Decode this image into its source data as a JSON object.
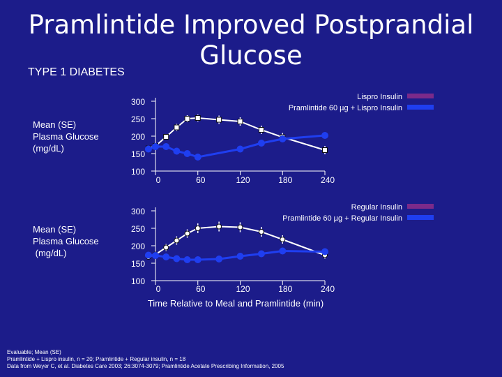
{
  "slide": {
    "title_line1": "Pramlintide Improved Postprandial",
    "title_line2": "Glucose",
    "subtitle": "TYPE 1 DIABETES",
    "xlabel": "Time Relative to Meal and Pramlintide (min)",
    "footer": [
      "Evaluable; Mean (SE)",
      "Pramlintide + Lispro insulin, n = 20;  Pramlintide + Regular insulin, n = 18",
      "Data from Weyer C, et al. Diabetes Care 2003; 26:3074-3079;  Pramlintide Acetate Prescribing Information, 2005"
    ]
  },
  "colors": {
    "background": "#1c1c8a",
    "control": "#ffffff",
    "pramlintide": "#1f3ef0",
    "legend_control_swatch": "#7b2a8a"
  },
  "chart_data": [
    {
      "type": "line",
      "ylabel": "Mean (SE)\nPlasma Glucose\n(mg/dL)",
      "ylim": [
        100,
        300
      ],
      "yticks": [
        100,
        150,
        200,
        250,
        300
      ],
      "xlim": [
        0,
        240
      ],
      "xticks": [
        0,
        60,
        120,
        180,
        240
      ],
      "series": [
        {
          "name": "Lispro Insulin",
          "style": "control",
          "x": [
            -10,
            0,
            15,
            30,
            45,
            60,
            90,
            120,
            150,
            180,
            240
          ],
          "y": [
            165,
            172,
            198,
            225,
            250,
            252,
            247,
            242,
            218,
            197,
            160
          ],
          "err": [
            0,
            8,
            8,
            10,
            10,
            10,
            12,
            12,
            12,
            12,
            12
          ]
        },
        {
          "name": "Pramlintide 60 µg + Lispro Insulin",
          "style": "pramlintide",
          "x": [
            -10,
            0,
            15,
            30,
            45,
            60,
            120,
            150,
            180,
            240
          ],
          "y": [
            163,
            170,
            170,
            157,
            150,
            140,
            163,
            180,
            192,
            202
          ],
          "err": [
            0,
            0,
            0,
            0,
            0,
            0,
            0,
            0,
            0,
            0
          ]
        }
      ]
    },
    {
      "type": "line",
      "ylabel": "Mean (SE)\nPlasma Glucose\n (mg/dL)",
      "ylim": [
        100,
        300
      ],
      "yticks": [
        100,
        150,
        200,
        250,
        300
      ],
      "xlim": [
        0,
        240
      ],
      "xticks": [
        0,
        60,
        120,
        180,
        240
      ],
      "series": [
        {
          "name": "Regular Insulin",
          "style": "control",
          "x": [
            -10,
            0,
            15,
            30,
            45,
            60,
            90,
            120,
            150,
            180,
            240
          ],
          "y": [
            168,
            175,
            195,
            215,
            235,
            250,
            255,
            253,
            240,
            218,
            173
          ],
          "err": [
            0,
            8,
            10,
            12,
            12,
            14,
            14,
            14,
            14,
            12,
            10
          ]
        },
        {
          "name": "Pramlintide 60 µg + Regular Insulin",
          "style": "pramlintide",
          "x": [
            -10,
            0,
            15,
            30,
            45,
            60,
            90,
            120,
            150,
            180,
            240
          ],
          "y": [
            173,
            172,
            168,
            163,
            160,
            160,
            162,
            170,
            177,
            185,
            183
          ],
          "err": [
            0,
            0,
            0,
            0,
            0,
            0,
            0,
            0,
            0,
            0,
            0
          ]
        }
      ]
    }
  ]
}
